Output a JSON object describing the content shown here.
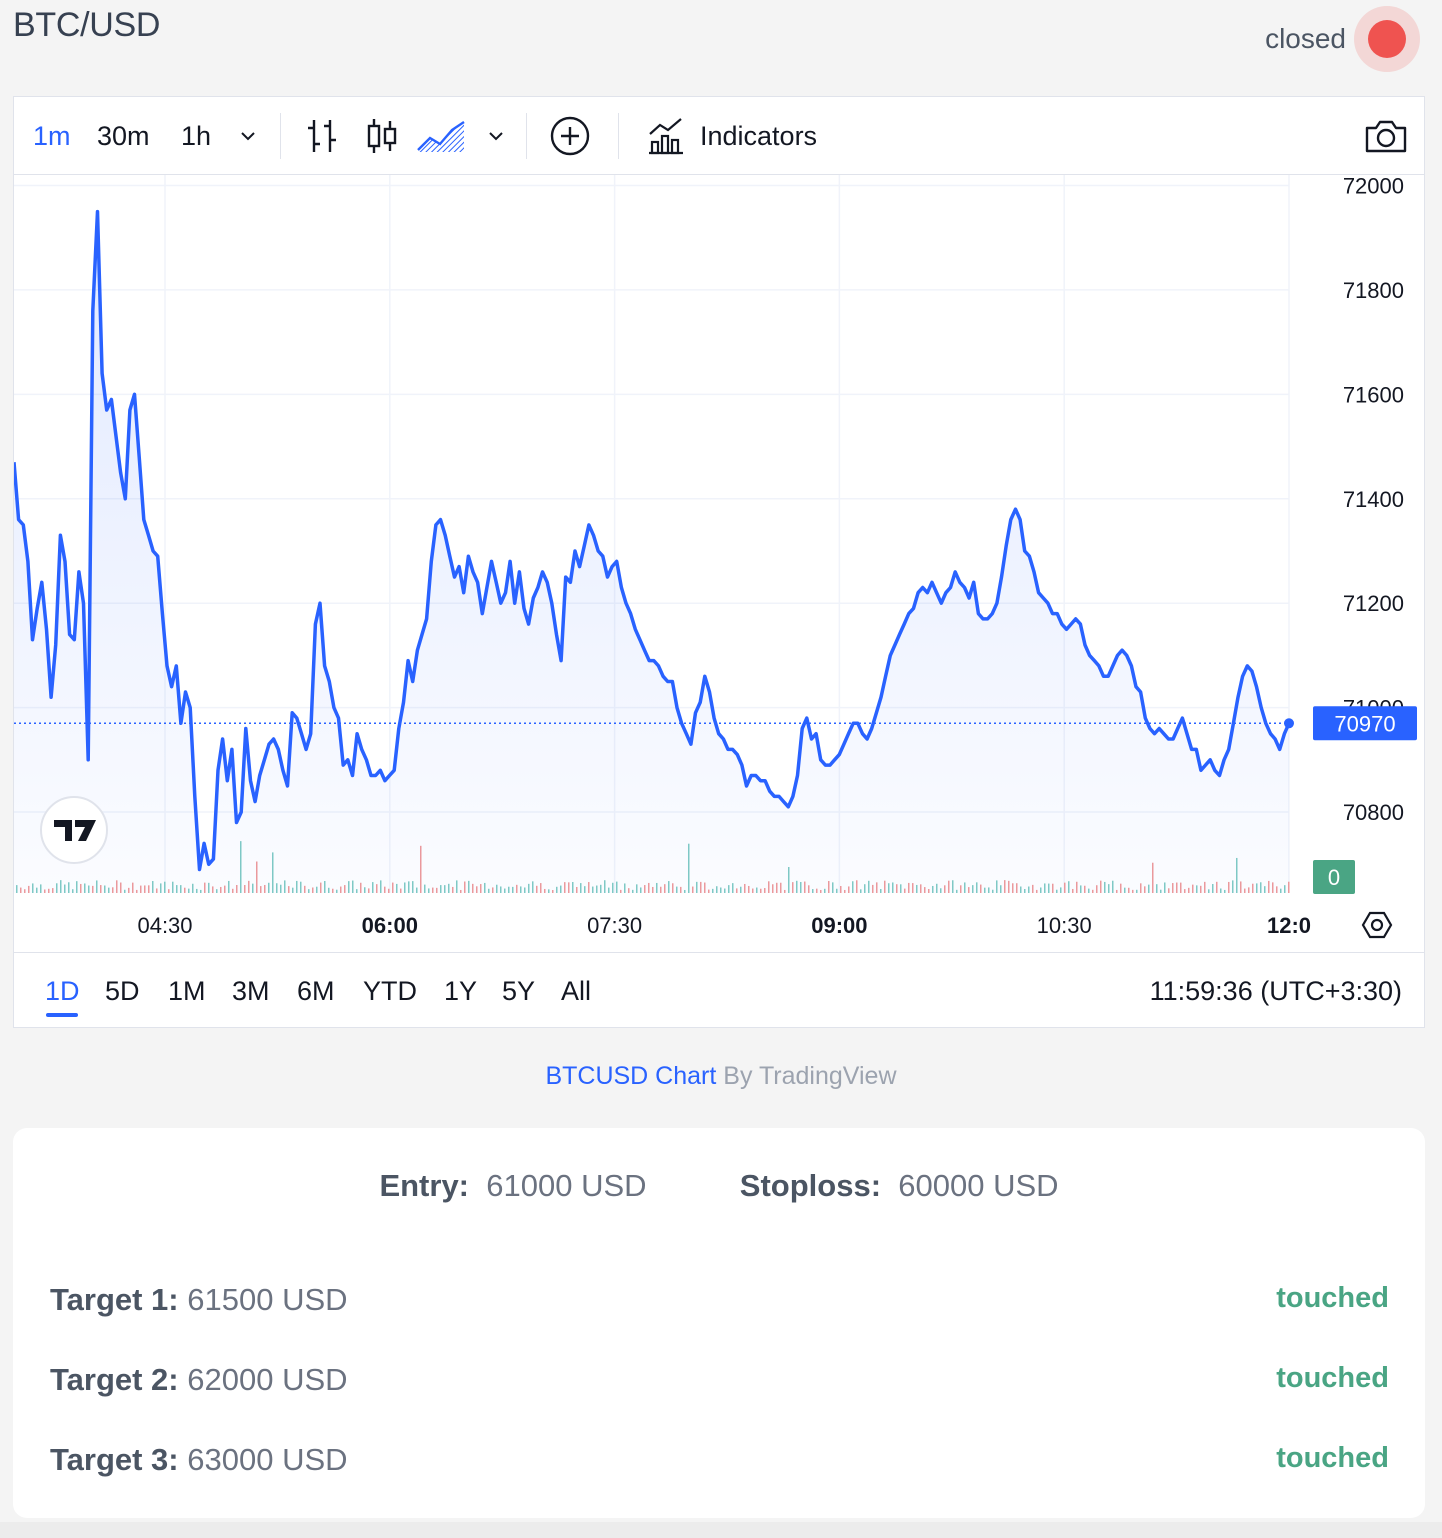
{
  "header": {
    "pair": "BTC/USD",
    "status": "closed",
    "status_color": "#ef5350"
  },
  "toolbar": {
    "intervals": [
      "1m",
      "30m",
      "1h"
    ],
    "active_interval": "1m",
    "indicators_label": "Indicators"
  },
  "chart_data": {
    "type": "area",
    "line_color": "#2962ff",
    "x_ticks": [
      {
        "label": "04:30",
        "bold": false
      },
      {
        "label": "06:00",
        "bold": true
      },
      {
        "label": "07:30",
        "bold": false
      },
      {
        "label": "09:00",
        "bold": true
      },
      {
        "label": "10:30",
        "bold": false
      },
      {
        "label": "12:0",
        "bold": true
      }
    ],
    "y_ticks": [
      72000,
      71800,
      71600,
      71400,
      71200,
      71000,
      70800
    ],
    "ylim": [
      70645,
      72020
    ],
    "last_price": "70970",
    "volume_label": "0",
    "values": [
      71470,
      71360,
      71350,
      71280,
      71130,
      71190,
      71240,
      71150,
      71020,
      71120,
      71330,
      71280,
      71140,
      71130,
      71260,
      71200,
      70900,
      71760,
      71950,
      71640,
      71570,
      71590,
      71520,
      71450,
      71400,
      71570,
      71600,
      71480,
      71360,
      71330,
      71300,
      71290,
      71180,
      71080,
      71040,
      71080,
      70970,
      71030,
      71000,
      70830,
      70690,
      70740,
      70700,
      70710,
      70880,
      70940,
      70860,
      70920,
      70780,
      70800,
      70960,
      70860,
      70820,
      70870,
      70900,
      70930,
      70940,
      70920,
      70880,
      70850,
      70990,
      70980,
      70950,
      70920,
      70950,
      71160,
      71200,
      71080,
      71050,
      71000,
      70980,
      70890,
      70900,
      70870,
      70950,
      70920,
      70900,
      70870,
      70870,
      70880,
      70860,
      70870,
      70880,
      70960,
      71010,
      71090,
      71050,
      71110,
      71140,
      71170,
      71280,
      71350,
      71360,
      71330,
      71290,
      71250,
      71270,
      71220,
      71290,
      71260,
      71240,
      71180,
      71230,
      71280,
      71240,
      71200,
      71220,
      71280,
      71200,
      71260,
      71190,
      71160,
      71210,
      71230,
      71260,
      71240,
      71200,
      71140,
      71090,
      71250,
      71240,
      71300,
      71270,
      71310,
      71350,
      71330,
      71300,
      71290,
      71250,
      71270,
      71280,
      71230,
      71200,
      71180,
      71150,
      71130,
      71110,
      71090,
      71090,
      71080,
      71060,
      71050,
      71050,
      71000,
      70970,
      70950,
      70930,
      70990,
      71010,
      71060,
      71030,
      70980,
      70950,
      70940,
      70920,
      70920,
      70910,
      70890,
      70850,
      70870,
      70870,
      70860,
      70860,
      70840,
      70830,
      70830,
      70820,
      70810,
      70830,
      70870,
      70960,
      70980,
      70940,
      70950,
      70900,
      70890,
      70890,
      70900,
      70910,
      70930,
      70950,
      70970,
      70970,
      70950,
      70940,
      70960,
      70990,
      71020,
      71060,
      71100,
      71120,
      71140,
      71160,
      71180,
      71190,
      71220,
      71230,
      71220,
      71240,
      71220,
      71200,
      71220,
      71230,
      71260,
      71240,
      71230,
      71210,
      71240,
      71180,
      71170,
      71170,
      71180,
      71200,
      71250,
      71310,
      71360,
      71380,
      71360,
      71300,
      71290,
      71260,
      71220,
      71210,
      71200,
      71180,
      71180,
      71160,
      71150,
      71160,
      71170,
      71160,
      71120,
      71100,
      71090,
      71080,
      71060,
      71060,
      71080,
      71100,
      71110,
      71100,
      71080,
      71040,
      71030,
      70980,
      70960,
      70950,
      70960,
      70950,
      70940,
      70940,
      70960,
      70980,
      70950,
      70920,
      70920,
      70880,
      70890,
      70900,
      70880,
      70870,
      70900,
      70920,
      70970,
      71020,
      71060,
      71080,
      71070,
      71040,
      71000,
      70970,
      70950,
      70940,
      70920,
      70950,
      70970
    ]
  },
  "range_bar": {
    "ranges": [
      "1D",
      "5D",
      "1M",
      "3M",
      "6M",
      "YTD",
      "1Y",
      "5Y",
      "All"
    ],
    "active_range": "1D",
    "clock": "11:59:36 (UTC+3:30)"
  },
  "attribution": {
    "link": "BTCUSD Chart",
    "suffix": " By TradingView"
  },
  "trade": {
    "entry_label": "Entry:",
    "entry_value": "61000",
    "stoploss_label": "Stoploss:",
    "stoploss_value": "60000",
    "currency": "USD",
    "targets": [
      {
        "label": "Target 1:",
        "value": "61500",
        "currency": "USD",
        "status": "touched"
      },
      {
        "label": "Target 2:",
        "value": "62000",
        "currency": "USD",
        "status": "touched"
      },
      {
        "label": "Target 3:",
        "value": "63000",
        "currency": "USD",
        "status": "touched"
      }
    ],
    "touched_color": "#4aa584"
  }
}
